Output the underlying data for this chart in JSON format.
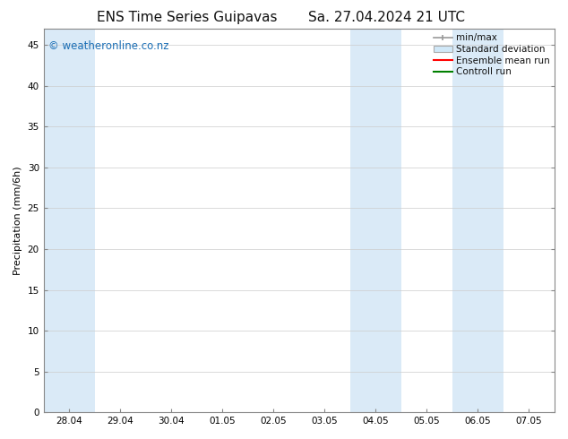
{
  "title": "ENS Time Series Guipavas",
  "title2": "Sa. 27.04.2024 21 UTC",
  "ylabel": "Precipitation (mm/6h)",
  "xlabel_ticks": [
    "28.04",
    "29.04",
    "30.04",
    "01.05",
    "02.05",
    "03.05",
    "04.05",
    "05.05",
    "06.05",
    "07.05"
  ],
  "tick_positions": [
    0,
    1,
    2,
    3,
    4,
    5,
    6,
    7,
    8,
    9
  ],
  "xlim": [
    -0.5,
    9.5
  ],
  "ylim": [
    0,
    47
  ],
  "yticks": [
    0,
    5,
    10,
    15,
    20,
    25,
    30,
    35,
    40,
    45
  ],
  "background_color": "#ffffff",
  "plot_bg_color": "#ffffff",
  "shaded_columns": [
    {
      "x_start": -0.5,
      "x_end": 0.5,
      "color": "#daeaf7"
    },
    {
      "x_start": 5.5,
      "x_end": 6.5,
      "color": "#daeaf7"
    },
    {
      "x_start": 7.5,
      "x_end": 8.5,
      "color": "#daeaf7"
    }
  ],
  "watermark_text": "© weatheronline.co.nz",
  "watermark_color": "#1a6eb5",
  "legend_items": [
    {
      "label": "min/max",
      "color": "#aaaaaa",
      "type": "hline_with_caps"
    },
    {
      "label": "Standard deviation",
      "color": "#d0e8f8",
      "type": "box"
    },
    {
      "label": "Ensemble mean run",
      "color": "#ff0000",
      "type": "line"
    },
    {
      "label": "Controll run",
      "color": "#008000",
      "type": "line"
    }
  ],
  "title_fontsize": 11,
  "tick_fontsize": 7.5,
  "ylabel_fontsize": 8,
  "watermark_fontsize": 8.5,
  "legend_fontsize": 7.5
}
